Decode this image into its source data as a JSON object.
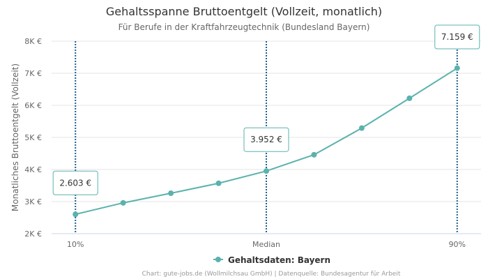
{
  "chart_data": {
    "type": "line",
    "title": "Gehaltsspanne Bruttoentgelt (Vollzeit, monatlich)",
    "subtitle": "Für Berufe in der Kraftfahrzeugtechnik (Bundesland Bayern)",
    "ylabel": "Monatliches Bruttoentgelt (Vollzeit)",
    "ylim": [
      2000,
      8000
    ],
    "yticks": [
      2000,
      3000,
      4000,
      5000,
      6000,
      7000,
      8000
    ],
    "ytick_labels": [
      "2K €",
      "3K €",
      "4K €",
      "5K €",
      "6K €",
      "7K €",
      "8K €"
    ],
    "x": [
      10,
      20,
      30,
      40,
      50,
      60,
      70,
      80,
      90
    ],
    "xtick_labels": [
      {
        "x": 10,
        "label": "10%"
      },
      {
        "x": 50,
        "label": "Median"
      },
      {
        "x": 90,
        "label": "90%"
      }
    ],
    "series": [
      {
        "name": "Gehaltsdaten: Bayern",
        "color": "#5ab2ad",
        "values": [
          2603,
          2960,
          3260,
          3570,
          3952,
          4460,
          5290,
          6220,
          7159
        ]
      }
    ],
    "markers": [
      {
        "x": 10,
        "label": "2.603 €"
      },
      {
        "x": 50,
        "label": "3.952 €"
      },
      {
        "x": 90,
        "label": "7.159 €"
      }
    ],
    "marker_line_color": "#1b5e8c",
    "legend_position": "bottom-center",
    "grid": true
  },
  "credits": "Chart: gute-jobs.de (Wollmilchsau GmbH) | Datenquelle: Bundesagentur für Arbeit"
}
